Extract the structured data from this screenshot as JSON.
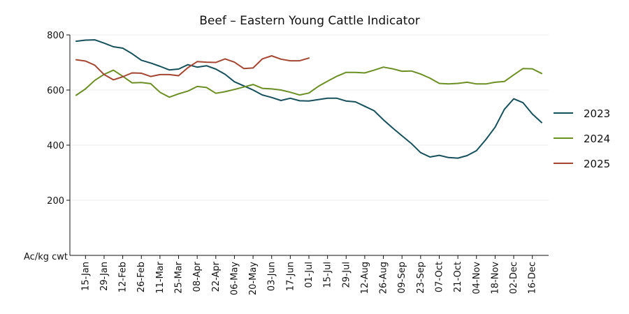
{
  "chart_data": {
    "type": "line",
    "title": "Beef – Eastern Young Cattle Indicator",
    "ylabel": "Ac/kg cwt",
    "xlabel": "",
    "ylim": [
      0,
      800
    ],
    "yticks": [
      200,
      400,
      600,
      800
    ],
    "grid": "horizontal",
    "legend_position": "right",
    "x_tick_labels": [
      "15-Jan",
      "29-Jan",
      "12-Feb",
      "26-Feb",
      "11-Mar",
      "25-Mar",
      "08-Apr",
      "22-Apr",
      "06-May",
      "20-May",
      "03-Jun",
      "17-Jun",
      "01-Jul",
      "15-Jul",
      "29-Jul",
      "12-Aug",
      "26-Aug",
      "09-Sep",
      "23-Sep",
      "07-Oct",
      "21-Oct",
      "04-Nov",
      "18-Nov",
      "02-Dec",
      "16-Dec"
    ],
    "x_start_label": "08-Jan",
    "x_step_days": 7,
    "series": [
      {
        "name": "2023",
        "color": "#16505c",
        "values": [
          777,
          781,
          782,
          770,
          757,
          752,
          732,
          708,
          698,
          686,
          673,
          676,
          692,
          683,
          688,
          676,
          657,
          630,
          615,
          600,
          582,
          573,
          562,
          570,
          561,
          560,
          565,
          570,
          570,
          560,
          557,
          541,
          525,
          492,
          462,
          434,
          406,
          373,
          357,
          363,
          355,
          353,
          362,
          380,
          420,
          465,
          530,
          568,
          554,
          513,
          482
        ]
      },
      {
        "name": "2024",
        "color": "#6b8f23",
        "values": [
          581,
          604,
          635,
          657,
          672,
          650,
          626,
          627,
          623,
          592,
          574,
          586,
          596,
          613,
          609,
          588,
          594,
          602,
          611,
          620,
          606,
          604,
          600,
          592,
          582,
          589,
          613,
          632,
          650,
          664,
          664,
          662,
          672,
          683,
          677,
          668,
          669,
          658,
          643,
          624,
          622,
          624,
          628,
          622,
          622,
          628,
          631,
          655,
          678,
          677,
          660
        ]
      },
      {
        "name": "2025",
        "color": "#a54632",
        "values": [
          710,
          705,
          690,
          656,
          637,
          648,
          662,
          661,
          649,
          656,
          656,
          652,
          681,
          703,
          701,
          700,
          713,
          701,
          678,
          680,
          713,
          724,
          712,
          706,
          706,
          716
        ]
      }
    ]
  }
}
